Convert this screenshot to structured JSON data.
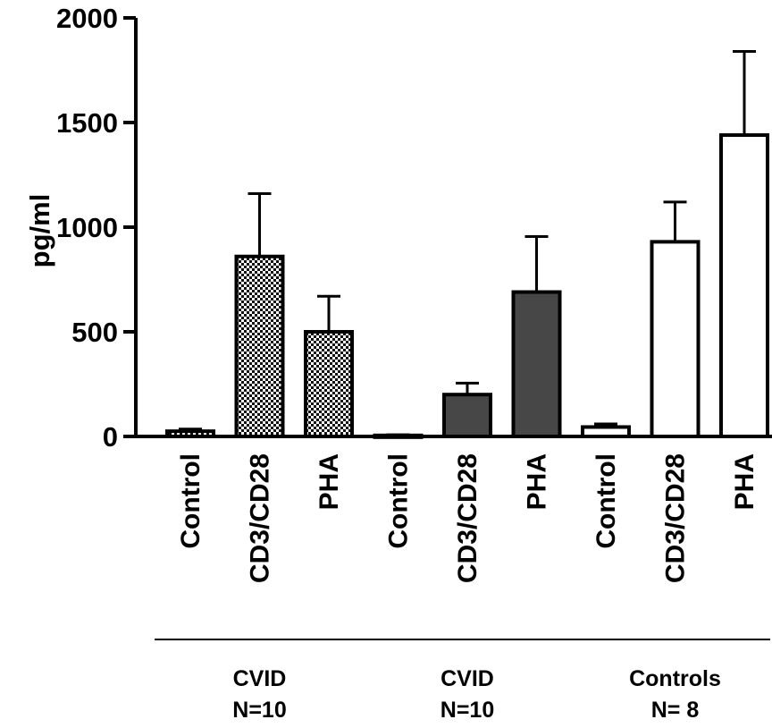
{
  "chart_data": {
    "type": "bar",
    "ylabel": "pg/ml",
    "ylim": [
      0,
      2000
    ],
    "yticks": [
      "0",
      "500",
      "1000",
      "1500",
      "2000"
    ],
    "grid": false,
    "categories": [
      "Control",
      "CD3/CD28",
      "PHA",
      "Control",
      "CD3/CD28",
      "PHA",
      "Control",
      "CD3/CD28",
      "PHA"
    ],
    "values": [
      25,
      860,
      500,
      5,
      200,
      690,
      45,
      930,
      1440
    ],
    "error_upper": [
      35,
      1160,
      670,
      8,
      255,
      955,
      60,
      1120,
      1840
    ],
    "fills": [
      "checker",
      "checker",
      "checker",
      "#474747",
      "#474747",
      "#474747",
      "#ffffff",
      "#ffffff",
      "#ffffff"
    ],
    "groups": [
      {
        "line1": "CVID",
        "line2": "N=10",
        "bars": [
          0,
          1,
          2
        ]
      },
      {
        "line1": "CVID",
        "line2": "N=10",
        "bars": [
          3,
          4,
          5
        ]
      },
      {
        "line1": "Controls",
        "line2": "N= 8",
        "bars": [
          6,
          7,
          8
        ]
      }
    ]
  }
}
